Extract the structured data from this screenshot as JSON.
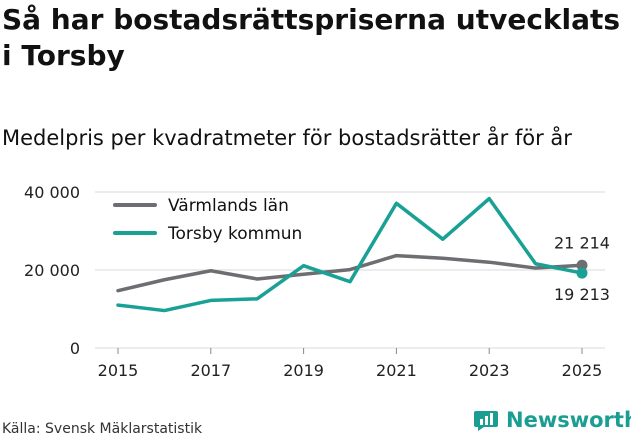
{
  "title": "Så har bostadsrättspriserna utvecklats i Torsby",
  "subtitle": "Medelpris per kvadratmeter för bostadsrätter år för år",
  "source": "Källa: Svensk Mäklarstatistik",
  "brand": "Newsworthy",
  "colors": {
    "lan": "#6e6d72",
    "kommun": "#1aa195",
    "grid": "#d8d8d8",
    "brand": "#1a9e93"
  },
  "chart_data": {
    "type": "line",
    "x": [
      2015,
      2016,
      2017,
      2018,
      2019,
      2020,
      2021,
      2022,
      2023,
      2024,
      2025
    ],
    "xticks": [
      2015,
      2017,
      2019,
      2021,
      2023,
      2025
    ],
    "yticks": [
      0,
      20000,
      40000
    ],
    "ytick_labels": [
      "0",
      "20 000",
      "40 000"
    ],
    "ylim": [
      0,
      42000
    ],
    "series": [
      {
        "name": "Värmlands län",
        "key": "lan",
        "values": [
          14700,
          17500,
          19800,
          17700,
          18900,
          20100,
          23700,
          23000,
          22000,
          20500,
          21214
        ],
        "end_label": "21 214"
      },
      {
        "name": "Torsby kommun",
        "key": "kommun",
        "values": [
          11000,
          9600,
          12200,
          12600,
          21100,
          17000,
          37100,
          27900,
          38300,
          21600,
          19213
        ],
        "end_label": "19 213"
      }
    ],
    "legend_position": "top-left"
  }
}
